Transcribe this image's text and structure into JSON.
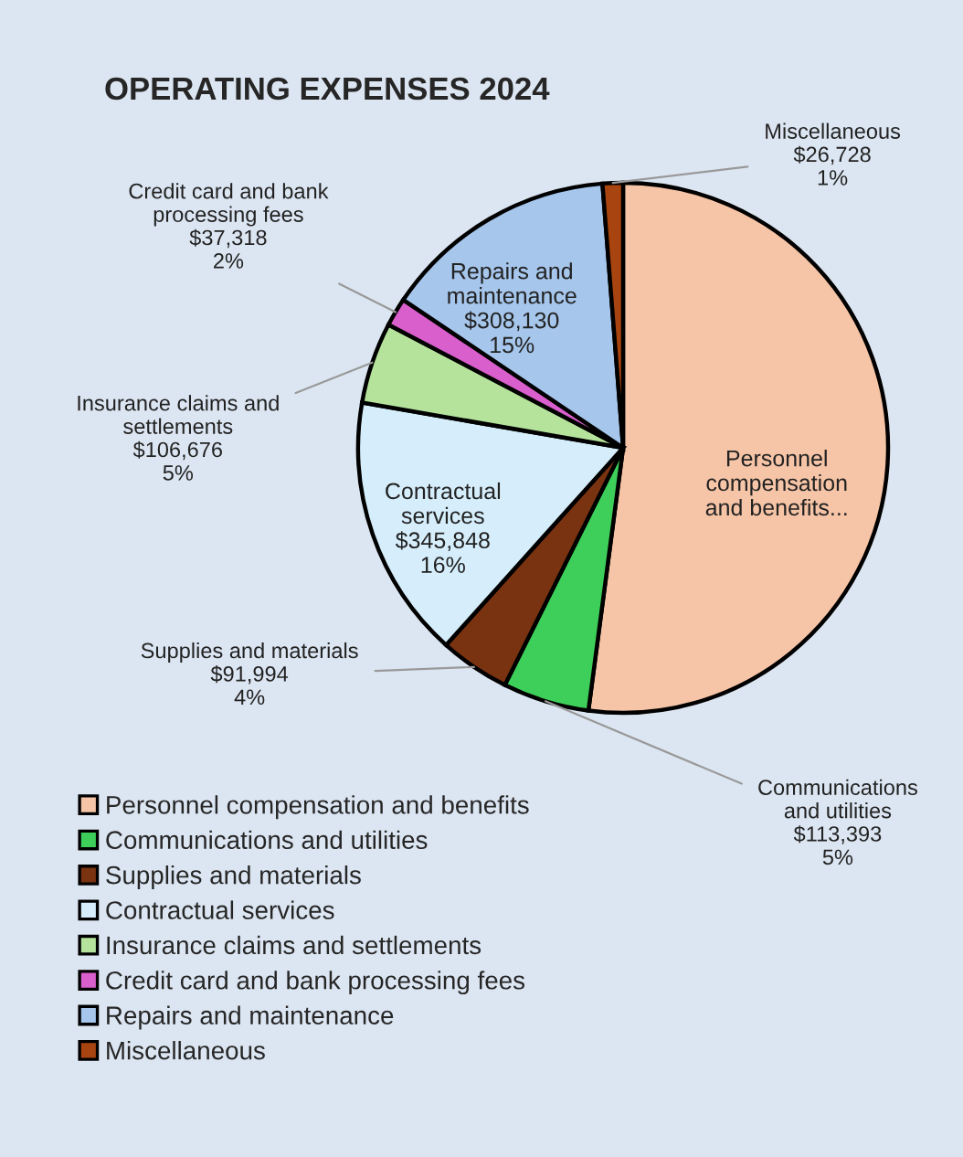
{
  "chart_data": {
    "type": "pie",
    "title": "OPERATING EXPENSES 2024",
    "categories": [
      "Personnel compensation and benefits",
      "Communications and utilities",
      "Supplies and materials",
      "Contractual services",
      "Insurance claims and settlements",
      "Credit card and bank processing fees",
      "Repairs and maintenance",
      "Miscellaneous"
    ],
    "values": [
      1120000,
      113393,
      91994,
      345848,
      106676,
      37318,
      308130,
      26728
    ],
    "colors": [
      "#f6c4a6",
      "#3ecf5a",
      "#7a3310",
      "#d6eefb",
      "#b5e39c",
      "#d95fcc",
      "#a6c6ec",
      "#a8440f"
    ],
    "value_labels": [
      "Personnel\ncompensation\nand benefits...",
      "Communications\nand utilities\n$113,393\n5%",
      "Supplies and materials\n$91,994\n4%",
      "Contractual\nservices\n$345,848\n16%",
      "Insurance claims and\nsettlements\n$106,676\n5%",
      "Credit card and bank\nprocessing fees\n$37,318\n2%",
      "Repairs and\nmaintenance\n$308,130\n15%",
      "Miscellaneous\n$26,728\n1%"
    ],
    "legend": "bottom left"
  }
}
